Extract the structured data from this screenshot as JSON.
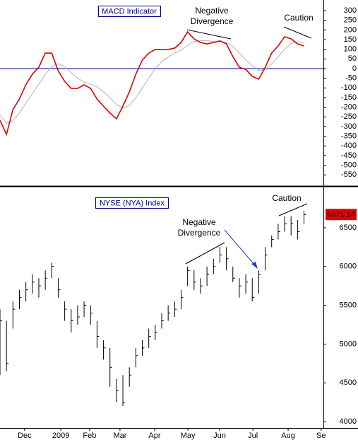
{
  "chart_data": [
    {
      "type": "line",
      "title": "MACD Indicator",
      "annotations": [
        {
          "lines": [
            "Negative",
            "Divergence"
          ]
        },
        {
          "lines": [
            "Caution"
          ]
        }
      ],
      "x": [
        0,
        2,
        4,
        6,
        8,
        10,
        12,
        14,
        16,
        18,
        20,
        22,
        24,
        26,
        28,
        30,
        32,
        34,
        36,
        38,
        40,
        42,
        44,
        46,
        48,
        50,
        52,
        54,
        56,
        58,
        60,
        62,
        64,
        66,
        68,
        70,
        72,
        74,
        76,
        78,
        80,
        82,
        84,
        86,
        88,
        90,
        92,
        94
      ],
      "series": [
        {
          "color": "#e00000",
          "values": [
            -267,
            -340,
            -212,
            -157,
            -84,
            -29,
            7,
            80,
            80,
            -11,
            -66,
            -102,
            -102,
            -84,
            -102,
            -157,
            -194,
            -230,
            -260,
            -194,
            -121,
            -29,
            44,
            80,
            99,
            99,
            99,
            106,
            135,
            190,
            154,
            135,
            128,
            135,
            143,
            128,
            62,
            7,
            -4,
            -40,
            -55,
            7,
            80,
            117,
            165,
            154,
            128,
            117
          ]
        },
        {
          "color": "#b4b4b4",
          "values": [
            -240,
            -280,
            -270,
            -230,
            -180,
            -130,
            -80,
            -30,
            10,
            25,
            10,
            -20,
            -50,
            -70,
            -80,
            -95,
            -120,
            -150,
            -185,
            -205,
            -190,
            -150,
            -100,
            -50,
            0,
            35,
            60,
            80,
            95,
            120,
            140,
            145,
            145,
            140,
            140,
            135,
            115,
            80,
            45,
            15,
            -10,
            -5,
            25,
            60,
            100,
            130,
            140,
            135
          ]
        }
      ],
      "xlim": [
        0,
        100
      ],
      "ylim": [
        -604,
        355
      ],
      "yticks": [
        300,
        250,
        200,
        150,
        100,
        50,
        0,
        -50,
        -100,
        -150,
        -200,
        -250,
        -300,
        -350,
        -400,
        -450,
        -500,
        -550
      ],
      "zero_line": true,
      "zero_line_color": "#00008b"
    },
    {
      "type": "ohlc",
      "title": "NYSE (NYA) Index",
      "annotations": [
        {
          "lines": [
            "Negative",
            "Divergence"
          ]
        },
        {
          "lines": [
            "Caution"
          ]
        }
      ],
      "x": [
        0,
        2,
        4,
        6,
        8,
        10,
        12,
        14,
        16,
        18,
        20,
        22,
        24,
        26,
        28,
        30,
        32,
        34,
        36,
        38,
        40,
        42,
        44,
        46,
        48,
        50,
        52,
        54,
        56,
        58,
        60,
        62,
        64,
        66,
        68,
        70,
        72,
        74,
        76,
        78,
        80,
        82,
        84,
        86,
        88,
        90,
        92,
        94
      ],
      "high": [
        5450,
        5300,
        5550,
        5700,
        5800,
        5900,
        5850,
        5950,
        6050,
        5850,
        5550,
        5450,
        5500,
        5550,
        5500,
        5300,
        5050,
        4950,
        4550,
        4600,
        4700,
        4950,
        5050,
        5200,
        5250,
        5400,
        5500,
        5550,
        5700,
        6000,
        5950,
        5850,
        6000,
        6100,
        6250,
        6250,
        6000,
        5850,
        5900,
        5850,
        5950,
        6250,
        6400,
        6550,
        6650,
        6650,
        6600,
        6720
      ],
      "low": [
        4600,
        4650,
        5200,
        5450,
        5550,
        5650,
        5600,
        5700,
        5850,
        5600,
        5300,
        5150,
        5250,
        5350,
        5250,
        4950,
        4800,
        4450,
        4250,
        4200,
        4450,
        4700,
        4850,
        4950,
        5050,
        5200,
        5300,
        5350,
        5450,
        5750,
        5700,
        5650,
        5750,
        5900,
        6050,
        5950,
        5800,
        5600,
        5650,
        5550,
        5650,
        5950,
        6250,
        6350,
        6450,
        6400,
        6350,
        6550
      ],
      "close": [
        5300,
        4750,
        5450,
        5600,
        5700,
        5800,
        5750,
        5850,
        6000,
        5700,
        5450,
        5300,
        5350,
        5500,
        5400,
        5100,
        4950,
        4700,
        4400,
        4250,
        4600,
        4850,
        4950,
        5100,
        5150,
        5300,
        5400,
        5450,
        5600,
        5950,
        5800,
        5750,
        5900,
        6000,
        6150,
        6100,
        5850,
        5750,
        5800,
        5600,
        5900,
        6150,
        6350,
        6450,
        6550,
        6550,
        6450,
        6671.14
      ],
      "color": "#000000",
      "last_value_color": "#e00000",
      "xlim": [
        0,
        100
      ],
      "ylim": [
        3918,
        7020
      ],
      "yticks": [
        4000,
        4500,
        5000,
        5500,
        6000,
        6500
      ],
      "xticks": [
        {
          "value": 7.6,
          "label": "Dec"
        },
        {
          "value": 18.8,
          "label": "2009"
        },
        {
          "value": 27.7,
          "label": "Feb"
        },
        {
          "value": 37.1,
          "label": "Mar"
        },
        {
          "value": 47.8,
          "label": "Apr"
        },
        {
          "value": 58.1,
          "label": "May"
        },
        {
          "value": 67.9,
          "label": "Jun"
        },
        {
          "value": 78.2,
          "label": "Jul"
        },
        {
          "value": 89.1,
          "label": "Aug"
        },
        {
          "value": 99.3,
          "label": "Se"
        }
      ]
    }
  ]
}
